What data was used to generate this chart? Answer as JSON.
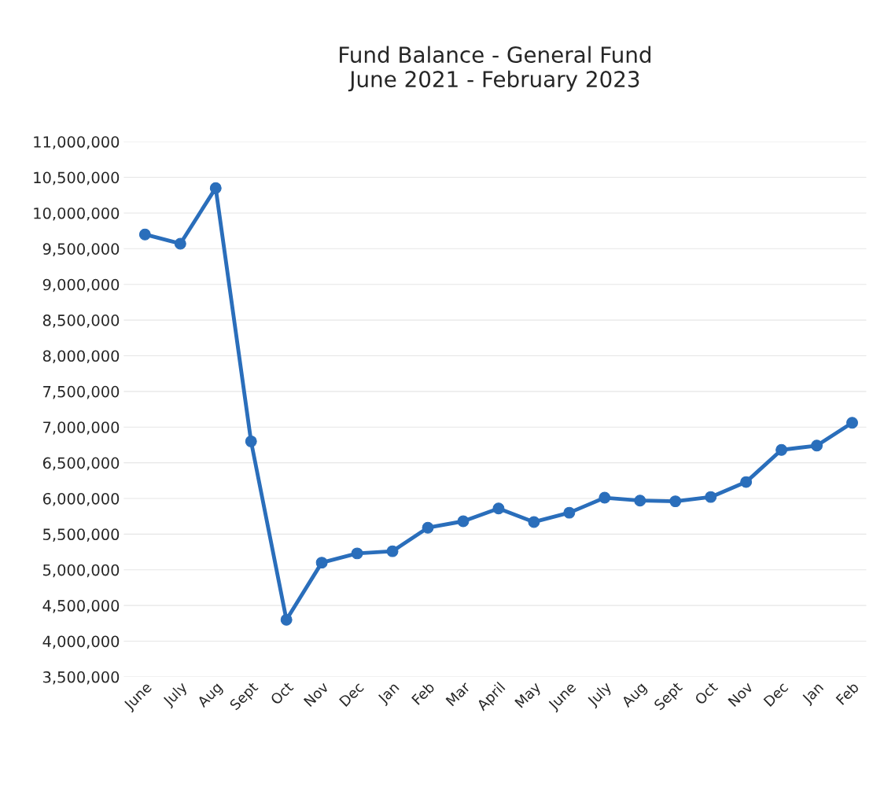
{
  "chart_data": {
    "type": "line",
    "title": "Fund Balance - General Fund\nJune 2021 - February 2023",
    "categories": [
      "June",
      "July",
      "Aug",
      "Sept",
      "Oct",
      "Nov",
      "Dec",
      "Jan",
      "Feb",
      "Mar",
      "April",
      "May",
      "June",
      "July",
      "Aug",
      "Sept",
      "Oct",
      "Nov",
      "Dec",
      "Jan",
      "Feb"
    ],
    "series": [
      {
        "color": "#2a6ebb",
        "values": [
          9700000,
          9570000,
          10350000,
          6800000,
          4300000,
          5100000,
          5230000,
          5260000,
          5590000,
          5680000,
          5860000,
          5670000,
          5800000,
          6010000,
          5970000,
          5960000,
          6020000,
          6230000,
          6680000,
          6740000,
          7060000
        ]
      }
    ],
    "ylim": [
      3500000,
      11000000
    ],
    "yticks": [
      {
        "value": 3500000,
        "label": "3,500,000"
      },
      {
        "value": 4000000,
        "label": "4,000,000"
      },
      {
        "value": 4500000,
        "label": "4,500,000"
      },
      {
        "value": 5000000,
        "label": "5,000,000"
      },
      {
        "value": 5500000,
        "label": "5,500,000"
      },
      {
        "value": 6000000,
        "label": "6,000,000"
      },
      {
        "value": 6500000,
        "label": "6,500,000"
      },
      {
        "value": 7000000,
        "label": "7,000,000"
      },
      {
        "value": 7500000,
        "label": "7,500,000"
      },
      {
        "value": 8000000,
        "label": "8,000,000"
      },
      {
        "value": 8500000,
        "label": "8,500,000"
      },
      {
        "value": 9000000,
        "label": "9,000,000"
      },
      {
        "value": 9500000,
        "label": "9,500,000"
      },
      {
        "value": 10000000,
        "label": "10,000,000"
      },
      {
        "value": 10500000,
        "label": "10,500,000"
      },
      {
        "value": 11000000,
        "label": "11,000,000"
      }
    ],
    "grid": "y",
    "marker": "circle",
    "line_style": "solid",
    "legend": false
  }
}
